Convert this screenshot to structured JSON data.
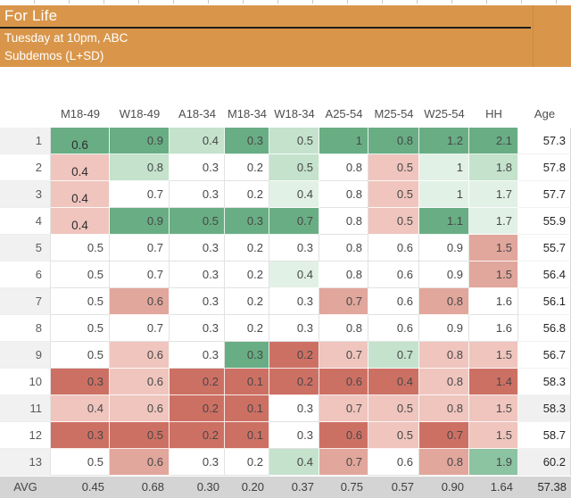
{
  "header": {
    "title": "For Life",
    "subtitle_schedule": "Tuesday at 10pm, ABC",
    "subtitle_demos": "Subdemos (L+SD)",
    "bg_color": "#d9964a",
    "underline_color": "#1c1c1c"
  },
  "palette": {
    "g3": "#69ad84",
    "g2": "#8cc3a1",
    "g1": "#c4e2cc",
    "g0": "#e2f1e6",
    "w": "#ffffff",
    "r1": "#efc5be",
    "r2": "#e1a69c",
    "r3": "#cd7064"
  },
  "table": {
    "columns": [
      "M18-49",
      "W18-49",
      "A18-34",
      "M18-34",
      "W18-34",
      "A25-54",
      "M25-54",
      "W25-54",
      "HH",
      "Age"
    ],
    "rows": [
      {
        "num": "1",
        "values": [
          "0.6",
          "0.9",
          "0.4",
          "0.3",
          "0.5",
          "1",
          "0.8",
          "1.2",
          "2.1"
        ],
        "colors": [
          "g3",
          "g3",
          "g1",
          "g3",
          "g1",
          "g3",
          "g3",
          "g3",
          "g3"
        ],
        "age": "57.3"
      },
      {
        "num": "2",
        "values": [
          "0.4",
          "0.8",
          "0.3",
          "0.2",
          "0.5",
          "0.8",
          "0.5",
          "1",
          "1.8"
        ],
        "colors": [
          "r1",
          "g1",
          "w",
          "w",
          "g1",
          "w",
          "r1",
          "g0",
          "g1"
        ],
        "age": "57.8"
      },
      {
        "num": "3",
        "values": [
          "0.4",
          "0.7",
          "0.3",
          "0.2",
          "0.4",
          "0.8",
          "0.5",
          "1",
          "1.7"
        ],
        "colors": [
          "r1",
          "w",
          "w",
          "w",
          "g0",
          "w",
          "r1",
          "g0",
          "g0"
        ],
        "age": "57.7"
      },
      {
        "num": "4",
        "values": [
          "0.4",
          "0.9",
          "0.5",
          "0.3",
          "0.7",
          "0.8",
          "0.5",
          "1.1",
          "1.7"
        ],
        "colors": [
          "r1",
          "g3",
          "g3",
          "g3",
          "g3",
          "w",
          "r1",
          "g3",
          "g0"
        ],
        "age": "55.9"
      },
      {
        "num": "5",
        "values": [
          "0.5",
          "0.7",
          "0.3",
          "0.2",
          "0.3",
          "0.8",
          "0.6",
          "0.9",
          "1.5"
        ],
        "colors": [
          "w",
          "w",
          "w",
          "w",
          "w",
          "w",
          "w",
          "w",
          "r2"
        ],
        "age": "55.7"
      },
      {
        "num": "6",
        "values": [
          "0.5",
          "0.7",
          "0.3",
          "0.2",
          "0.4",
          "0.8",
          "0.6",
          "0.9",
          "1.5"
        ],
        "colors": [
          "w",
          "w",
          "w",
          "w",
          "g0",
          "w",
          "w",
          "w",
          "r2"
        ],
        "age": "56.4"
      },
      {
        "num": "7",
        "values": [
          "0.5",
          "0.6",
          "0.3",
          "0.2",
          "0.3",
          "0.7",
          "0.6",
          "0.8",
          "1.6"
        ],
        "colors": [
          "w",
          "r2",
          "w",
          "w",
          "w",
          "r2",
          "w",
          "r2",
          "w"
        ],
        "age": "56.1"
      },
      {
        "num": "8",
        "values": [
          "0.5",
          "0.7",
          "0.3",
          "0.2",
          "0.3",
          "0.8",
          "0.6",
          "0.9",
          "1.6"
        ],
        "colors": [
          "w",
          "w",
          "w",
          "w",
          "w",
          "w",
          "w",
          "w",
          "w"
        ],
        "age": "56.8"
      },
      {
        "num": "9",
        "values": [
          "0.5",
          "0.6",
          "0.3",
          "0.3",
          "0.2",
          "0.7",
          "0.7",
          "0.8",
          "1.5"
        ],
        "colors": [
          "w",
          "r1",
          "w",
          "g3",
          "r3",
          "r1",
          "g1",
          "r1",
          "r1"
        ],
        "age": "56.7"
      },
      {
        "num": "10",
        "values": [
          "0.3",
          "0.6",
          "0.2",
          "0.1",
          "0.2",
          "0.6",
          "0.4",
          "0.8",
          "1.4"
        ],
        "colors": [
          "r3",
          "r1",
          "r3",
          "r3",
          "r3",
          "r3",
          "r3",
          "r1",
          "r3"
        ],
        "age": "58.3"
      },
      {
        "num": "11",
        "values": [
          "0.4",
          "0.6",
          "0.2",
          "0.1",
          "0.3",
          "0.7",
          "0.5",
          "0.8",
          "1.5"
        ],
        "colors": [
          "r1",
          "r1",
          "r3",
          "r3",
          "w",
          "r1",
          "r1",
          "r1",
          "r1"
        ],
        "age": "58.3"
      },
      {
        "num": "12",
        "values": [
          "0.3",
          "0.5",
          "0.2",
          "0.1",
          "0.3",
          "0.6",
          "0.5",
          "0.7",
          "1.5"
        ],
        "colors": [
          "r3",
          "r3",
          "r3",
          "r3",
          "w",
          "r3",
          "r1",
          "r3",
          "r1"
        ],
        "age": "58.7"
      },
      {
        "num": "13",
        "values": [
          "0.5",
          "0.6",
          "0.3",
          "0.2",
          "0.4",
          "0.7",
          "0.6",
          "0.8",
          "1.9"
        ],
        "colors": [
          "w",
          "r2",
          "w",
          "w",
          "g1",
          "r2",
          "w",
          "r2",
          "g2"
        ],
        "age": "60.2"
      }
    ],
    "age_shaded_rows": [
      11,
      13
    ],
    "avg": {
      "label": "AVG",
      "values": [
        "0.45",
        "0.68",
        "0.30",
        "0.20",
        "0.37",
        "0.75",
        "0.57",
        "0.90",
        "1.64"
      ],
      "age": "57.38",
      "bg_color": "#d4d4d4"
    }
  }
}
